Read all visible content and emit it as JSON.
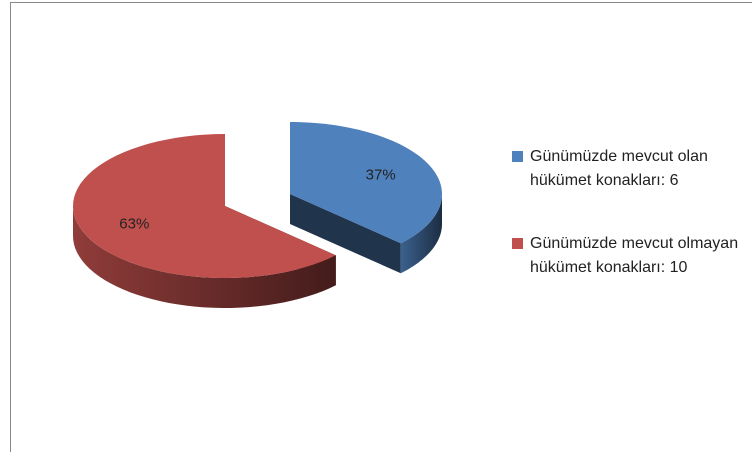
{
  "chart_data": {
    "type": "pie",
    "categories": [
      "Günümüzde mevcut olan hükümet konakları: 6",
      "Günümüzde mevcut olmayan hükümet konakları: 10"
    ],
    "values": [
      37,
      63
    ],
    "value_labels": [
      "37%",
      "63%"
    ],
    "colors": [
      "#4f81bd",
      "#c0504d"
    ],
    "legend": "right"
  }
}
